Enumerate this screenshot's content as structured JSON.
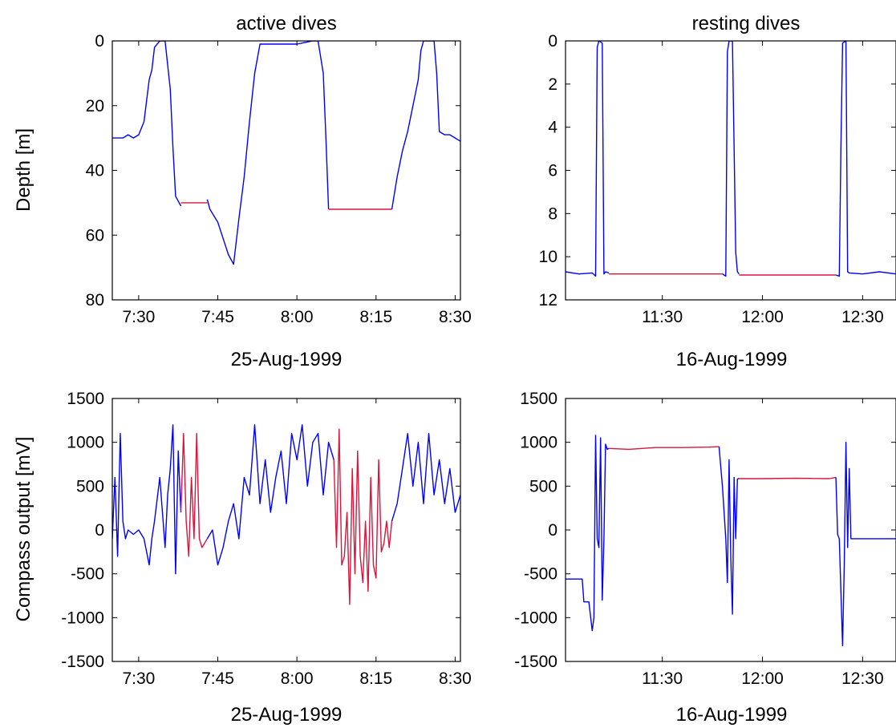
{
  "figure": {
    "shared_ylabels": {
      "depth": "Depth [m]",
      "compass": "Compass output [mV]"
    }
  },
  "colors": {
    "surface": "#0000ff",
    "bottom": "#dc143c",
    "axes": "#000000",
    "background": "#ffffff"
  },
  "chart_data": [
    {
      "id": "active_depth",
      "type": "line",
      "title": "active dives",
      "xlabel": "25-Aug-1999",
      "ylabel": "Depth [m]",
      "y_reversed": true,
      "xlim": [
        "7:25",
        "8:31"
      ],
      "ylim": [
        0,
        80
      ],
      "xticks": [
        "7:30",
        "7:45",
        "8:00",
        "8:15",
        "8:30"
      ],
      "yticks": [
        "0",
        "20",
        "40",
        "60",
        "80"
      ],
      "grid": false,
      "series": [
        {
          "color": "blue",
          "x": [
            "7:25",
            "7:27",
            "7:28",
            "7:29",
            "7:30",
            "7:31",
            "7:32",
            "7:32.5",
            "7:33",
            "7:34",
            "7:35",
            "7:36",
            "7:36.5",
            "7:37",
            "7:38"
          ],
          "y": [
            30,
            30,
            29,
            30,
            29,
            25,
            12,
            9,
            2,
            0,
            0,
            15,
            33,
            48,
            51
          ]
        },
        {
          "color": "red",
          "x": [
            "7:38",
            "7:40",
            "7:42",
            "7:43"
          ],
          "y": [
            50,
            50,
            50,
            50
          ]
        },
        {
          "color": "blue",
          "x": [
            "7:43",
            "7:43.5",
            "7:45",
            "7:46",
            "7:47",
            "7:48",
            "7:49",
            "7:50",
            "7:51",
            "7:52",
            "7:53",
            "7:55",
            "8:00",
            "8:03",
            "8:04",
            "8:05",
            "8:05.5",
            "8:06"
          ],
          "y": [
            49,
            52,
            56,
            61,
            66,
            69,
            55,
            42,
            25,
            10,
            1,
            1,
            1,
            0,
            0,
            10,
            30,
            52
          ]
        },
        {
          "color": "red",
          "x": [
            "8:06",
            "8:10",
            "8:14",
            "8:18"
          ],
          "y": [
            52,
            52,
            52,
            52
          ]
        },
        {
          "color": "blue",
          "x": [
            "8:18",
            "8:19",
            "8:20",
            "8:21",
            "8:22",
            "8:23",
            "8:23.5",
            "8:24",
            "8:25",
            "8:26",
            "8:26.5",
            "8:27",
            "8:28",
            "8:29",
            "8:30",
            "8:31"
          ],
          "y": [
            52,
            42,
            34,
            28,
            20,
            12,
            3,
            0,
            0,
            0,
            10,
            28,
            29,
            29,
            30,
            31
          ]
        }
      ]
    },
    {
      "id": "resting_depth",
      "type": "line",
      "title": "resting dives",
      "xlabel": "16-Aug-1999",
      "ylabel": "",
      "y_reversed": true,
      "xlim": [
        "11:01",
        "12:40"
      ],
      "ylim": [
        0,
        12
      ],
      "xticks": [
        "11:30",
        "12:00",
        "12:30"
      ],
      "yticks": [
        "0",
        "2",
        "4",
        "6",
        "8",
        "10",
        "12"
      ],
      "grid": false,
      "series": [
        {
          "color": "blue",
          "x": [
            "11:01",
            "11:05",
            "11:09",
            "11:10",
            "11:10.5",
            "11:11",
            "11:12",
            "11:12.5",
            "11:13",
            "11:14"
          ],
          "y": [
            10.7,
            10.8,
            10.75,
            10.9,
            0.3,
            0,
            0.1,
            10.8,
            10.7,
            10.75
          ]
        },
        {
          "color": "red",
          "x": [
            "11:14",
            "11:48"
          ],
          "y": [
            10.8,
            10.8
          ]
        },
        {
          "color": "blue",
          "x": [
            "11:48",
            "11:49",
            "11:49.5",
            "11:50",
            "11:51",
            "11:52",
            "11:52.5",
            "11:53"
          ],
          "y": [
            10.8,
            10.9,
            0.5,
            0,
            0,
            9.8,
            10.7,
            10.8
          ]
        },
        {
          "color": "red",
          "x": [
            "11:53",
            "12:22"
          ],
          "y": [
            10.85,
            10.85
          ]
        },
        {
          "color": "blue",
          "x": [
            "12:22",
            "12:23",
            "12:23.5",
            "12:24",
            "12:25",
            "12:25.5",
            "12:26",
            "12:30",
            "12:35",
            "12:40"
          ],
          "y": [
            10.85,
            10.9,
            5.0,
            0.1,
            0,
            10.7,
            10.75,
            10.8,
            10.7,
            10.8
          ]
        }
      ]
    },
    {
      "id": "active_compass",
      "type": "line",
      "title": "",
      "xlabel": "25-Aug-1999",
      "ylabel": "Compass output [mV]",
      "xlim": [
        "7:25",
        "8:31"
      ],
      "ylim": [
        -1500,
        1500
      ],
      "xticks": [
        "7:30",
        "7:45",
        "8:00",
        "8:15",
        "8:30"
      ],
      "yticks": [
        "1500",
        "1000",
        "500",
        "0",
        "-500",
        "-1000",
        "-1500"
      ],
      "grid": false,
      "series": [
        {
          "color": "blue",
          "x": [
            "7:25",
            "7:25.5",
            "7:26",
            "7:26.5",
            "7:27",
            "7:27.5",
            "7:28",
            "7:29",
            "7:30",
            "7:31",
            "7:32",
            "7:32.5",
            "7:33",
            "7:34",
            "7:35",
            "7:35.5",
            "7:36",
            "7:36.5",
            "7:37",
            "7:37.5",
            "7:38"
          ],
          "y": [
            -100,
            600,
            -300,
            1100,
            100,
            -100,
            0,
            -50,
            0,
            -100,
            -400,
            -100,
            100,
            600,
            -200,
            400,
            700,
            1200,
            -500,
            900,
            200
          ]
        },
        {
          "color": "red",
          "x": [
            "7:38",
            "7:38.5",
            "7:39",
            "7:39.5",
            "7:40",
            "7:40.5",
            "7:41",
            "7:41.5",
            "7:42",
            "7:42.5",
            "7:43"
          ],
          "y": [
            200,
            1100,
            100,
            -300,
            600,
            -100,
            1100,
            -100,
            -200,
            -150,
            -100
          ]
        },
        {
          "color": "blue",
          "x": [
            "7:43",
            "7:44",
            "7:45",
            "7:46",
            "7:47",
            "7:48",
            "7:49",
            "7:50",
            "7:51",
            "7:52",
            "7:53",
            "7:54",
            "7:55",
            "7:56",
            "7:57",
            "7:58",
            "7:59",
            "8:00",
            "8:01",
            "8:02",
            "8:03",
            "8:04",
            "8:05",
            "8:06",
            "8:07"
          ],
          "y": [
            -100,
            0,
            -400,
            -200,
            100,
            300,
            -100,
            600,
            400,
            1200,
            300,
            800,
            200,
            600,
            900,
            300,
            1100,
            800,
            1200,
            500,
            1000,
            1100,
            400,
            1000,
            800
          ]
        },
        {
          "color": "red",
          "x": [
            "8:07",
            "8:07.5",
            "8:08",
            "8:08.5",
            "8:09",
            "8:09.5",
            "8:10",
            "8:10.5",
            "8:11",
            "8:11.5",
            "8:12",
            "8:12.5",
            "8:13",
            "8:13.5",
            "8:14",
            "8:14.5",
            "8:15",
            "8:15.5",
            "8:16",
            "8:16.5",
            "8:17",
            "8:17.5",
            "8:18"
          ],
          "y": [
            800,
            -200,
            1150,
            -400,
            -300,
            200,
            -850,
            700,
            -500,
            900,
            -300,
            -600,
            100,
            -700,
            600,
            -400,
            -550,
            800,
            -250,
            -150,
            100,
            -200,
            100
          ]
        },
        {
          "color": "blue",
          "x": [
            "8:18",
            "8:19",
            "8:20",
            "8:21",
            "8:22",
            "8:23",
            "8:24",
            "8:25",
            "8:26",
            "8:27",
            "8:28",
            "8:29",
            "8:30",
            "8:31"
          ],
          "y": [
            100,
            300,
            700,
            1100,
            500,
            1000,
            300,
            1100,
            400,
            800,
            300,
            700,
            200,
            400
          ]
        }
      ]
    },
    {
      "id": "resting_compass",
      "type": "line",
      "title": "",
      "xlabel": "16-Aug-1999",
      "ylabel": "",
      "xlim": [
        "11:01",
        "12:40"
      ],
      "ylim": [
        -1500,
        1500
      ],
      "xticks": [
        "11:30",
        "12:00",
        "12:30"
      ],
      "yticks": [
        "1500",
        "1000",
        "500",
        "0",
        "-500",
        "-1000",
        "-1500"
      ],
      "grid": false,
      "series": [
        {
          "color": "blue",
          "x": [
            "11:01",
            "11:06",
            "11:06.5",
            "11:08",
            "11:09",
            "11:09.5",
            "11:10",
            "11:10.5",
            "11:11",
            "11:11.5",
            "11:12",
            "11:12.5",
            "11:13",
            "11:13.5",
            "11:14"
          ],
          "y": [
            -560,
            -560,
            -820,
            -820,
            -1150,
            -1000,
            1080,
            -100,
            -200,
            1050,
            -800,
            -100,
            980,
            920,
            930
          ]
        },
        {
          "color": "red",
          "x": [
            "11:14",
            "11:20",
            "11:28",
            "11:36",
            "11:44",
            "11:47"
          ],
          "y": [
            930,
            920,
            940,
            940,
            945,
            950
          ]
        },
        {
          "color": "blue",
          "x": [
            "11:47",
            "11:48",
            "11:49",
            "11:49.5",
            "11:50",
            "11:50.5",
            "11:51",
            "11:51.5",
            "11:52",
            "11:52.5",
            "11:53"
          ],
          "y": [
            950,
            500,
            -100,
            -600,
            800,
            -300,
            -960,
            600,
            -100,
            580,
            590
          ]
        },
        {
          "color": "red",
          "x": [
            "11:53",
            "12:00",
            "12:10",
            "12:20",
            "12:22"
          ],
          "y": [
            585,
            585,
            590,
            585,
            600
          ]
        },
        {
          "color": "blue",
          "x": [
            "12:22",
            "12:22.5",
            "12:23",
            "12:24",
            "12:24.5",
            "12:25",
            "12:25.5",
            "12:26",
            "12:26.5",
            "12:27",
            "12:28",
            "12:30",
            "12:40"
          ],
          "y": [
            600,
            -50,
            -100,
            -1320,
            -400,
            1000,
            -200,
            700,
            -100,
            -100,
            -100,
            -100,
            -100
          ]
        }
      ]
    }
  ]
}
